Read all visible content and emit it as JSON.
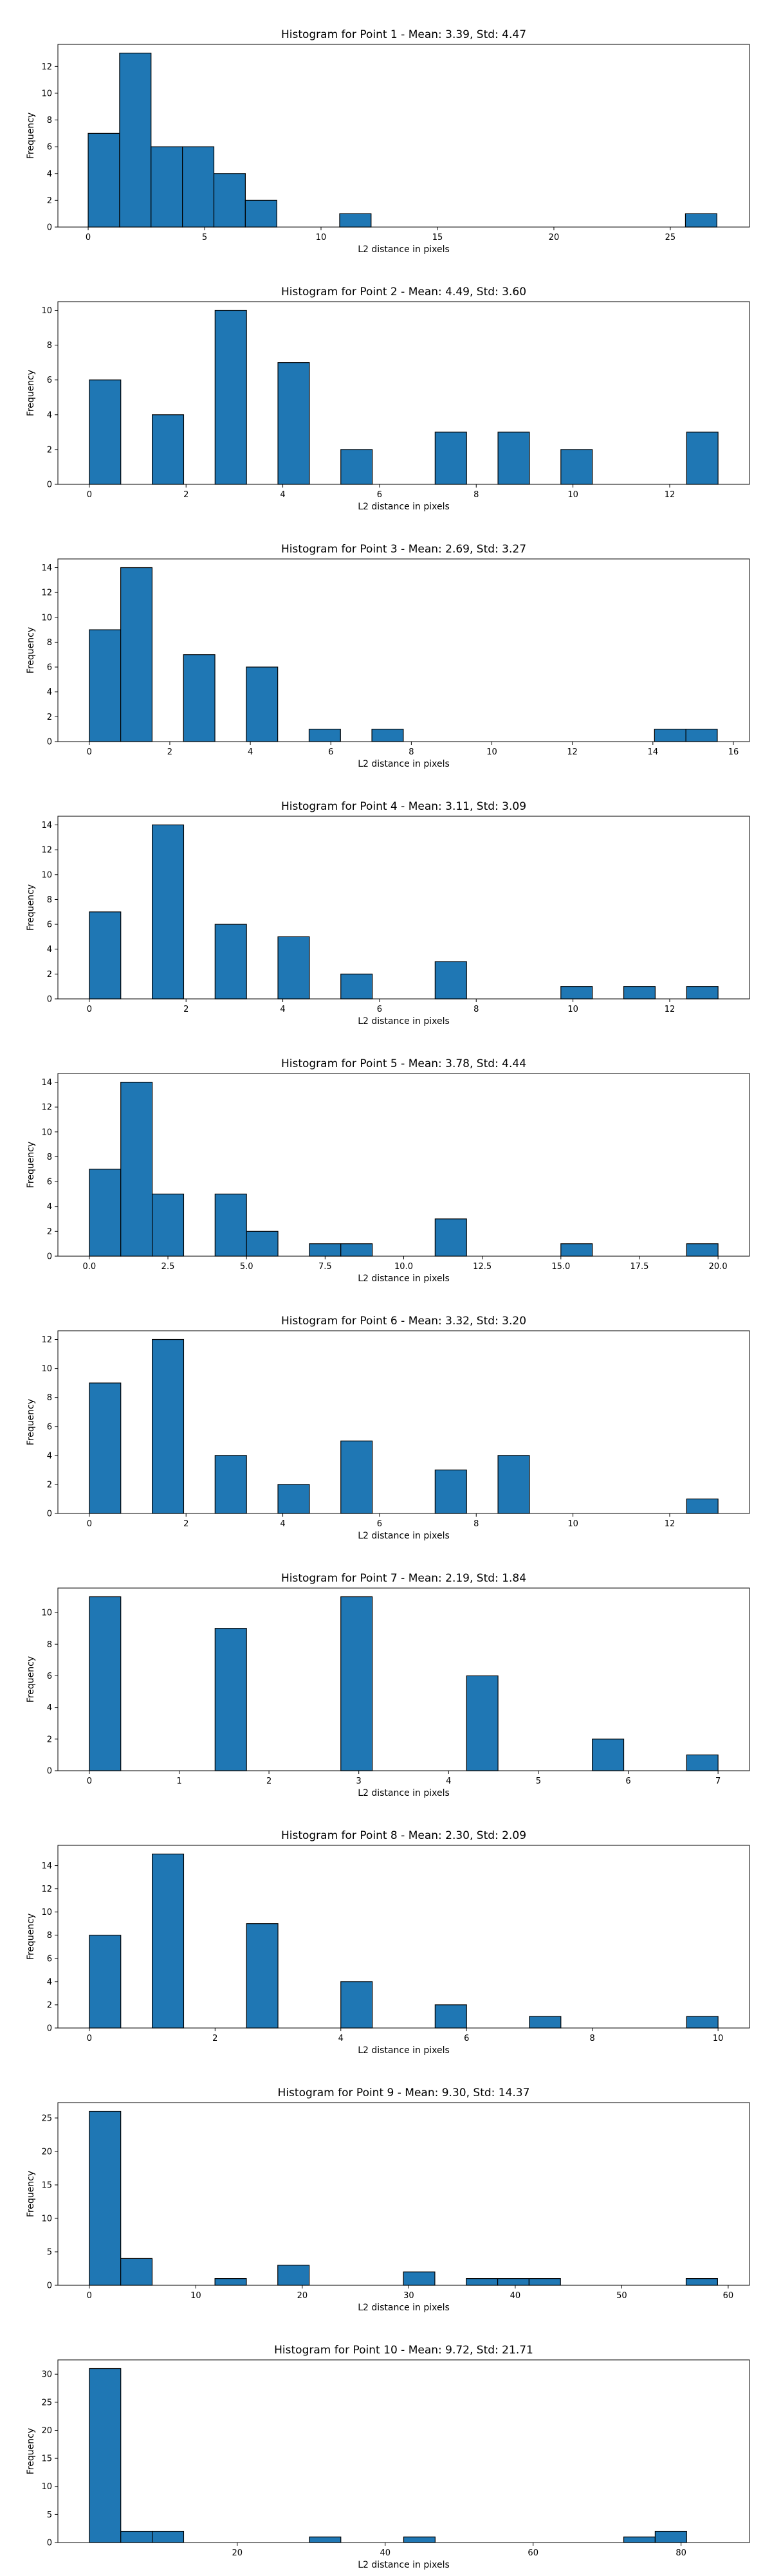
{
  "style": {
    "bar_color": "#1f77b4",
    "edge_color": "#000000",
    "background": "#ffffff"
  },
  "chart_data": [
    {
      "type": "bar",
      "title": "Histogram for Point 1 - Mean: 3.39, Std: 4.47",
      "xlabel": "L2 distance in pixels",
      "ylabel": "Frequency",
      "xlim": [
        -1.3,
        28.4
      ],
      "ylim": [
        0,
        13.65
      ],
      "xticks": [
        0,
        5,
        10,
        15,
        20,
        25
      ],
      "xtick_labels": [
        "0",
        "5",
        "10",
        "15",
        "20",
        "25"
      ],
      "yticks": [
        0,
        2,
        4,
        6,
        8,
        10,
        12
      ],
      "ytick_labels": [
        "0",
        "2",
        "4",
        "6",
        "8",
        "10",
        "12"
      ],
      "bin_width": 1.35,
      "bins": [
        [
          0,
          7
        ],
        [
          1.35,
          13
        ],
        [
          2.7,
          6
        ],
        [
          4.05,
          6
        ],
        [
          5.4,
          4
        ],
        [
          6.75,
          2
        ],
        [
          10.8,
          1
        ],
        [
          25.65,
          1
        ]
      ]
    },
    {
      "type": "bar",
      "title": "Histogram for Point 2 - Mean: 4.49, Std: 3.60",
      "xlabel": "L2 distance in pixels",
      "ylabel": "Frequency",
      "xlim": [
        -0.65,
        13.65
      ],
      "ylim": [
        0,
        10.5
      ],
      "xticks": [
        0,
        2,
        4,
        6,
        8,
        10,
        12
      ],
      "xtick_labels": [
        "0",
        "2",
        "4",
        "6",
        "8",
        "10",
        "12"
      ],
      "yticks": [
        0,
        2,
        4,
        6,
        8,
        10
      ],
      "ytick_labels": [
        "0",
        "2",
        "4",
        "6",
        "8",
        "10"
      ],
      "bin_width": 0.65,
      "bins": [
        [
          0,
          6
        ],
        [
          1.3,
          4
        ],
        [
          2.6,
          10
        ],
        [
          3.9,
          7
        ],
        [
          5.2,
          2
        ],
        [
          7.15,
          3
        ],
        [
          8.45,
          3
        ],
        [
          9.75,
          2
        ],
        [
          12.35,
          3
        ]
      ]
    },
    {
      "type": "bar",
      "title": "Histogram for Point 3 - Mean: 2.69, Std: 3.27",
      "xlabel": "L2 distance in pixels",
      "ylabel": "Frequency",
      "xlim": [
        -0.78,
        16.4
      ],
      "ylim": [
        0,
        14.7
      ],
      "xticks": [
        0,
        2,
        4,
        6,
        8,
        10,
        12,
        14,
        16
      ],
      "xtick_labels": [
        "0",
        "2",
        "4",
        "6",
        "8",
        "10",
        "12",
        "14",
        "16"
      ],
      "yticks": [
        0,
        2,
        4,
        6,
        8,
        10,
        12,
        14
      ],
      "ytick_labels": [
        "0",
        "2",
        "4",
        "6",
        "8",
        "10",
        "12",
        "14"
      ],
      "bin_width": 0.78,
      "bins": [
        [
          0,
          9
        ],
        [
          0.78,
          14
        ],
        [
          2.34,
          7
        ],
        [
          3.9,
          6
        ],
        [
          5.46,
          1
        ],
        [
          7.02,
          1
        ],
        [
          14.04,
          1
        ],
        [
          14.82,
          1
        ]
      ]
    },
    {
      "type": "bar",
      "title": "Histogram for Point 4 - Mean: 3.11, Std: 3.09",
      "xlabel": "L2 distance in pixels",
      "ylabel": "Frequency",
      "xlim": [
        -0.65,
        13.65
      ],
      "ylim": [
        0,
        14.7
      ],
      "xticks": [
        0,
        2,
        4,
        6,
        8,
        10,
        12
      ],
      "xtick_labels": [
        "0",
        "2",
        "4",
        "6",
        "8",
        "10",
        "12"
      ],
      "yticks": [
        0,
        2,
        4,
        6,
        8,
        10,
        12,
        14
      ],
      "ytick_labels": [
        "0",
        "2",
        "4",
        "6",
        "8",
        "10",
        "12",
        "14"
      ],
      "bin_width": 0.65,
      "bins": [
        [
          0,
          7
        ],
        [
          1.3,
          14
        ],
        [
          2.6,
          6
        ],
        [
          3.9,
          5
        ],
        [
          5.2,
          2
        ],
        [
          7.15,
          3
        ],
        [
          9.75,
          1
        ],
        [
          11.05,
          1
        ],
        [
          12.35,
          1
        ]
      ]
    },
    {
      "type": "bar",
      "title": "Histogram for Point 5 - Mean: 3.78, Std: 4.44",
      "xlabel": "L2 distance in pixels",
      "ylabel": "Frequency",
      "xlim": [
        -1,
        21
      ],
      "ylim": [
        0,
        14.7
      ],
      "xticks": [
        0,
        2.5,
        5,
        7.5,
        10,
        12.5,
        15,
        17.5,
        20
      ],
      "xtick_labels": [
        "0.0",
        "2.5",
        "5.0",
        "7.5",
        "10.0",
        "12.5",
        "15.0",
        "17.5",
        "20.0"
      ],
      "yticks": [
        0,
        2,
        4,
        6,
        8,
        10,
        12,
        14
      ],
      "ytick_labels": [
        "0",
        "2",
        "4",
        "6",
        "8",
        "10",
        "12",
        "14"
      ],
      "bin_width": 1.0,
      "bins": [
        [
          0,
          7
        ],
        [
          1,
          14
        ],
        [
          2,
          5
        ],
        [
          4,
          5
        ],
        [
          5,
          2
        ],
        [
          7,
          1
        ],
        [
          8,
          1
        ],
        [
          11,
          3
        ],
        [
          15,
          1
        ],
        [
          19,
          1
        ]
      ]
    },
    {
      "type": "bar",
      "title": "Histogram for Point 6 - Mean: 3.32, Std: 3.20",
      "xlabel": "L2 distance in pixels",
      "ylabel": "Frequency",
      "xlim": [
        -0.65,
        13.65
      ],
      "ylim": [
        0,
        12.6
      ],
      "xticks": [
        0,
        2,
        4,
        6,
        8,
        10,
        12
      ],
      "xtick_labels": [
        "0",
        "2",
        "4",
        "6",
        "8",
        "10",
        "12"
      ],
      "yticks": [
        0,
        2,
        4,
        6,
        8,
        10,
        12
      ],
      "ytick_labels": [
        "0",
        "2",
        "4",
        "6",
        "8",
        "10",
        "12"
      ],
      "bin_width": 0.65,
      "bins": [
        [
          0,
          9
        ],
        [
          1.3,
          12
        ],
        [
          2.6,
          4
        ],
        [
          3.9,
          2
        ],
        [
          5.2,
          5
        ],
        [
          7.15,
          3
        ],
        [
          8.45,
          4
        ],
        [
          12.35,
          1
        ]
      ]
    },
    {
      "type": "bar",
      "title": "Histogram for Point 7 - Mean: 2.19, Std: 1.84",
      "xlabel": "L2 distance in pixels",
      "ylabel": "Frequency",
      "xlim": [
        -0.35,
        7.35
      ],
      "ylim": [
        0,
        11.55
      ],
      "xticks": [
        0,
        1,
        2,
        3,
        4,
        5,
        6,
        7
      ],
      "xtick_labels": [
        "0",
        "1",
        "2",
        "3",
        "4",
        "5",
        "6",
        "7"
      ],
      "yticks": [
        0,
        2,
        4,
        6,
        8,
        10
      ],
      "ytick_labels": [
        "0",
        "2",
        "4",
        "6",
        "8",
        "10"
      ],
      "bin_width": 0.35,
      "bins": [
        [
          0,
          11
        ],
        [
          1.4,
          9
        ],
        [
          2.8,
          11
        ],
        [
          4.2,
          6
        ],
        [
          5.6,
          2
        ],
        [
          6.65,
          1
        ]
      ]
    },
    {
      "type": "bar",
      "title": "Histogram for Point 8 - Mean: 2.30, Std: 2.09",
      "xlabel": "L2 distance in pixels",
      "ylabel": "Frequency",
      "xlim": [
        -0.5,
        10.5
      ],
      "ylim": [
        0,
        15.75
      ],
      "xticks": [
        0,
        2,
        4,
        6,
        8,
        10
      ],
      "xtick_labels": [
        "0",
        "2",
        "4",
        "6",
        "8",
        "10"
      ],
      "yticks": [
        0,
        2,
        4,
        6,
        8,
        10,
        12,
        14
      ],
      "ytick_labels": [
        "0",
        "2",
        "4",
        "6",
        "8",
        "10",
        "12",
        "14"
      ],
      "bin_width": 0.5,
      "bins": [
        [
          0,
          8
        ],
        [
          1,
          15
        ],
        [
          2.5,
          9
        ],
        [
          4,
          4
        ],
        [
          5.5,
          2
        ],
        [
          7,
          1
        ],
        [
          9.5,
          1
        ]
      ]
    },
    {
      "type": "bar",
      "title": "Histogram for Point 9 - Mean: 9.30, Std: 14.37",
      "xlabel": "L2 distance in pixels",
      "ylabel": "Frequency",
      "xlim": [
        -2.95,
        62
      ],
      "ylim": [
        0,
        27.3
      ],
      "xticks": [
        0,
        10,
        20,
        30,
        40,
        50,
        60
      ],
      "xtick_labels": [
        "0",
        "10",
        "20",
        "30",
        "40",
        "50",
        "60"
      ],
      "yticks": [
        0,
        5,
        10,
        15,
        20,
        25
      ],
      "ytick_labels": [
        "0",
        "5",
        "10",
        "15",
        "20",
        "25"
      ],
      "bin_width": 2.95,
      "bins": [
        [
          0,
          26
        ],
        [
          2.95,
          4
        ],
        [
          11.8,
          1
        ],
        [
          17.7,
          3
        ],
        [
          29.5,
          2
        ],
        [
          35.4,
          1
        ],
        [
          38.35,
          1
        ],
        [
          41.3,
          1
        ],
        [
          56.05,
          1
        ]
      ]
    },
    {
      "type": "bar",
      "title": "Histogram for Point 10 - Mean: 9.72, Std: 21.71",
      "xlabel": "L2 distance in pixels",
      "ylabel": "Frequency",
      "xlim": [
        -4.25,
        89.25
      ],
      "ylim": [
        0,
        32.55
      ],
      "xticks": [
        20,
        40,
        60,
        80
      ],
      "xtick_labels": [
        "20",
        "40",
        "60",
        "80"
      ],
      "yticks": [
        0,
        5,
        10,
        15,
        20,
        25,
        30
      ],
      "ytick_labels": [
        "0",
        "5",
        "10",
        "15",
        "20",
        "25",
        "30"
      ],
      "bin_width": 4.25,
      "bins": [
        [
          0,
          31
        ],
        [
          4.25,
          2
        ],
        [
          8.5,
          2
        ],
        [
          29.75,
          1
        ],
        [
          42.5,
          1
        ],
        [
          72.25,
          1
        ],
        [
          76.5,
          2
        ]
      ]
    }
  ]
}
